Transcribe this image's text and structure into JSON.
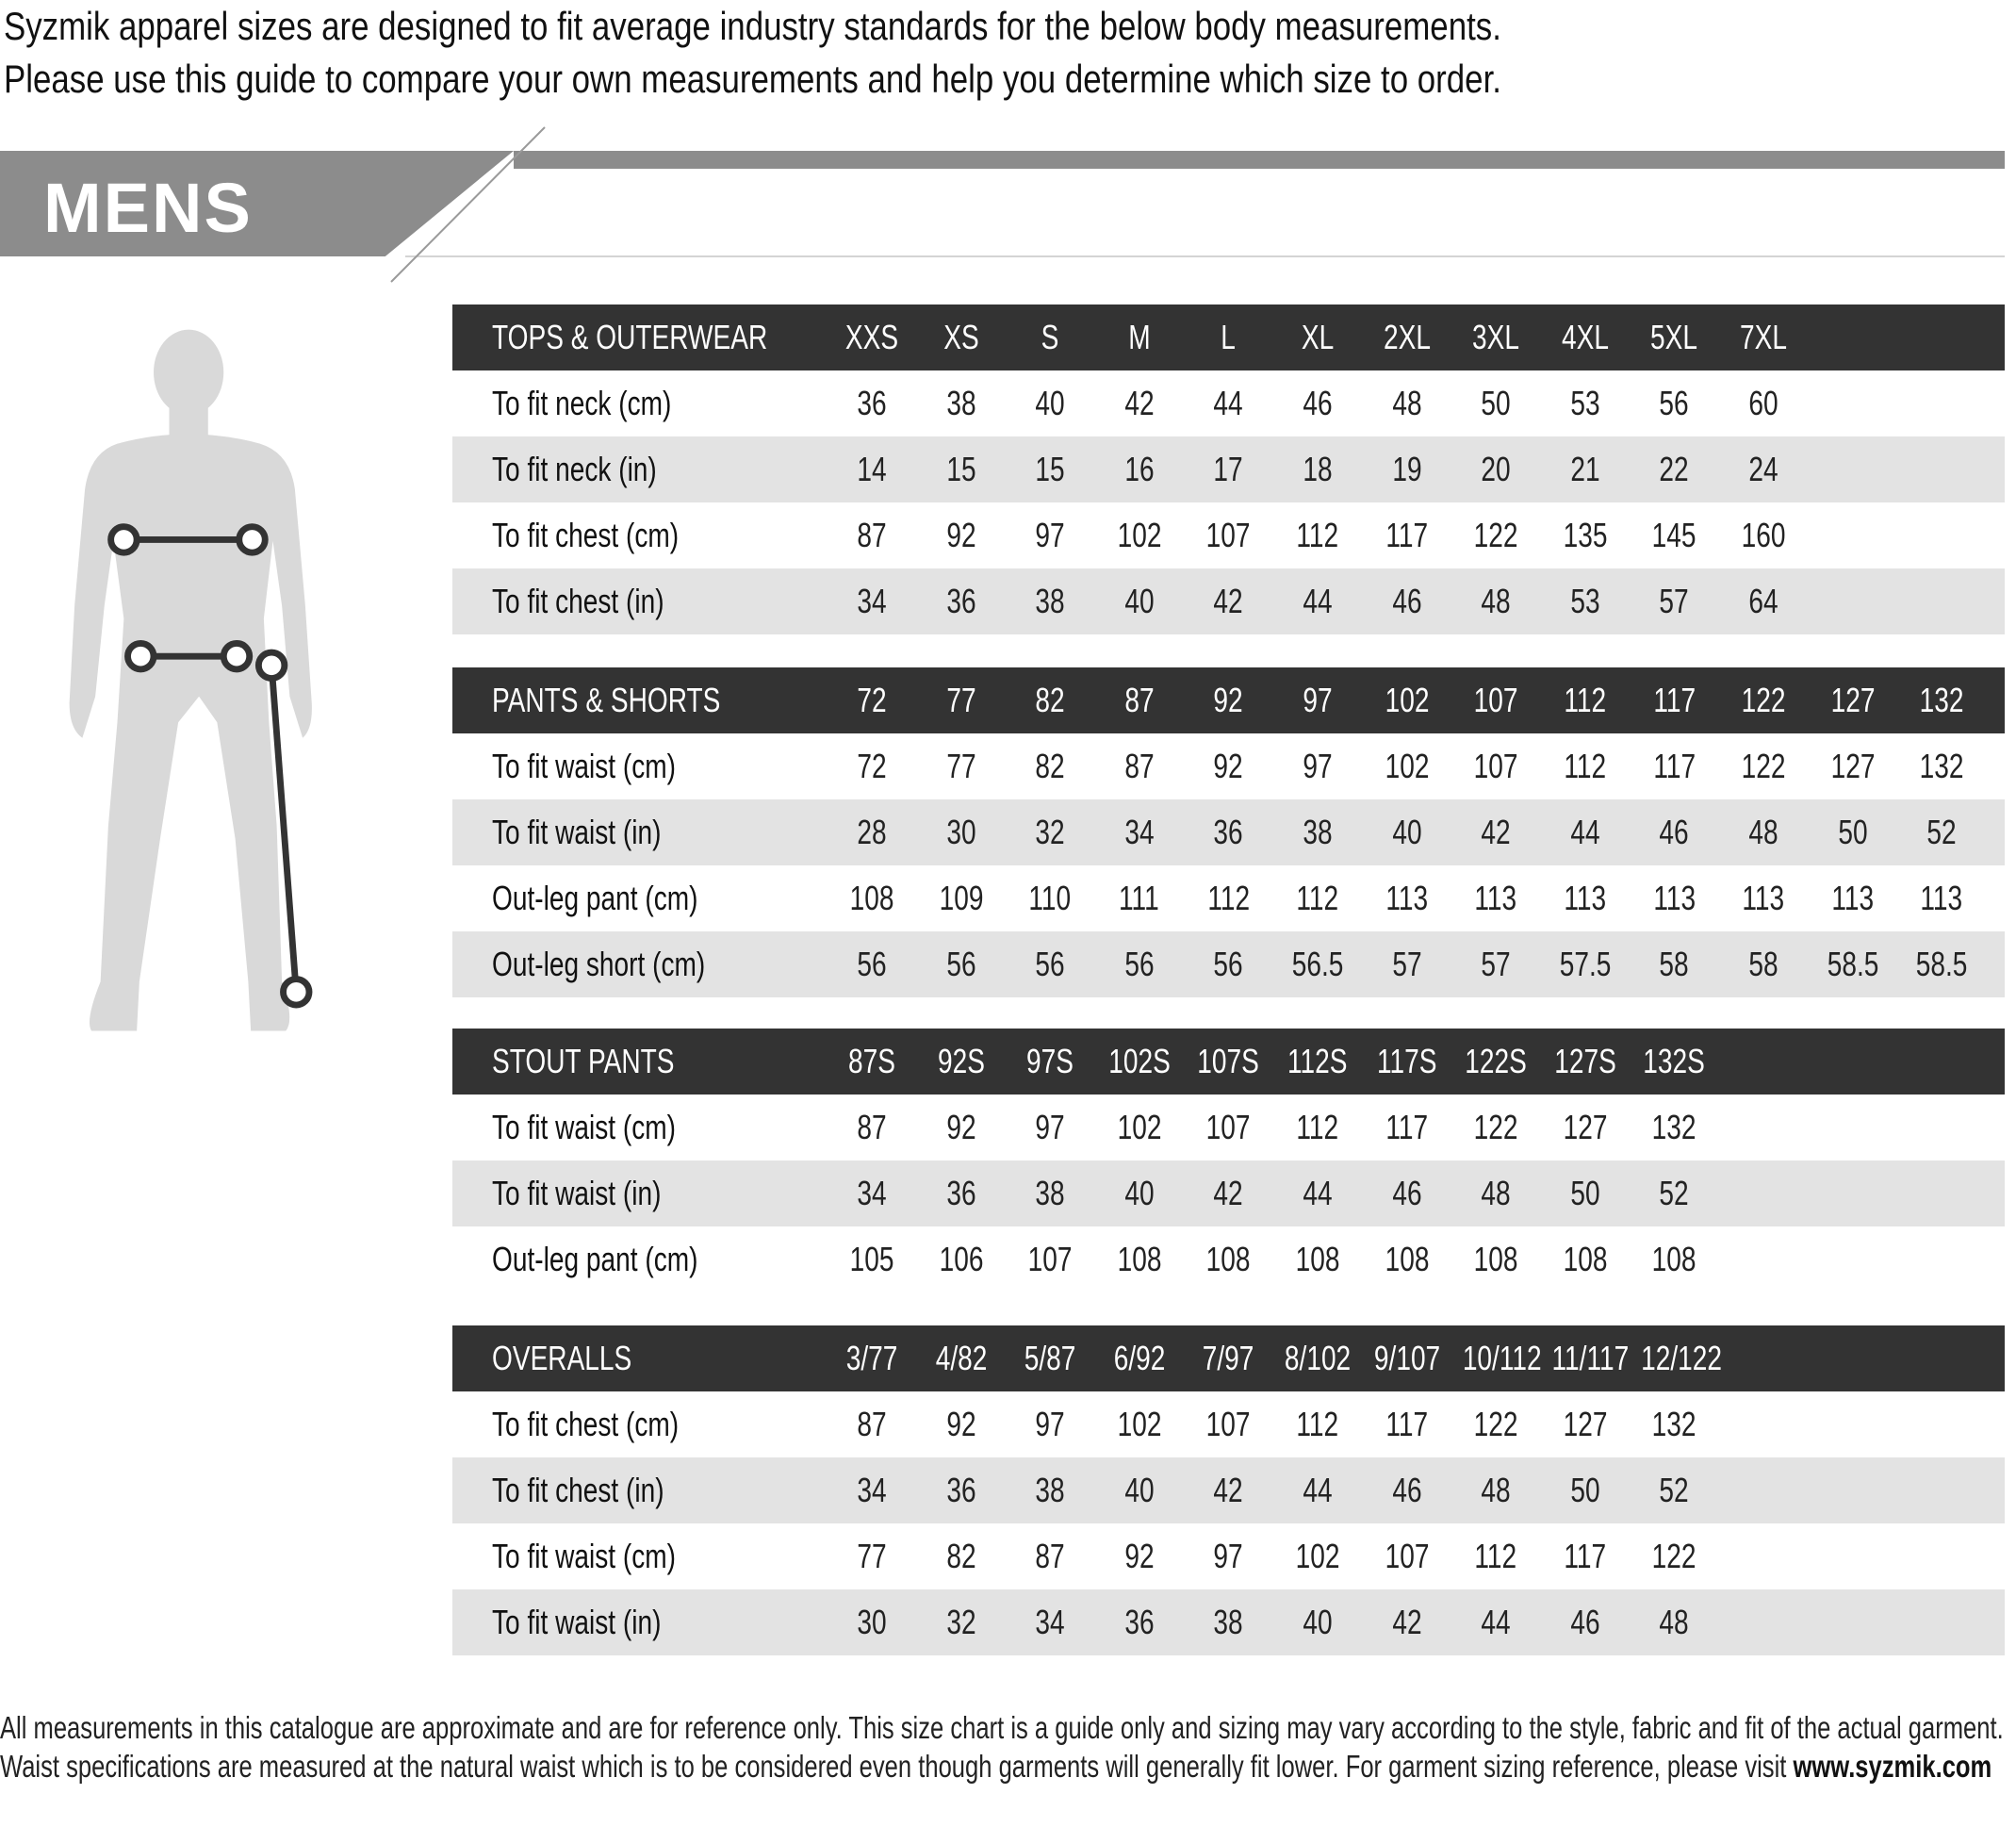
{
  "intro": {
    "line1": "Syzmik apparel sizes are designed to fit average industry standards for the below body measurements.",
    "line2": "Please use this guide to compare your own measurements and help you determine which size to order."
  },
  "banner": {
    "title": "MENS"
  },
  "colors": {
    "header_bg": "#333333",
    "alt_row": "#e3e3e3",
    "banner": "#8c8c8c",
    "figure": "#d9d9d9"
  },
  "tables": [
    {
      "title": "TOPS & OUTERWEAR",
      "sizes": [
        "XXS",
        "XS",
        "S",
        "M",
        "L",
        "XL",
        "2XL",
        "3XL",
        "4XL",
        "5XL",
        "7XL"
      ],
      "rows": [
        {
          "label": "To fit neck (cm)",
          "values": [
            "36",
            "38",
            "40",
            "42",
            "44",
            "46",
            "48",
            "50",
            "53",
            "56",
            "60"
          ]
        },
        {
          "label": "To fit neck (in)",
          "values": [
            "14",
            "15",
            "15",
            "16",
            "17",
            "18",
            "19",
            "20",
            "21",
            "22",
            "24"
          ]
        },
        {
          "label": "To fit chest (cm)",
          "values": [
            "87",
            "92",
            "97",
            "102",
            "107",
            "112",
            "117",
            "122",
            "135",
            "145",
            "160"
          ]
        },
        {
          "label": "To fit chest (in)",
          "values": [
            "34",
            "36",
            "38",
            "40",
            "42",
            "44",
            "46",
            "48",
            "53",
            "57",
            "64"
          ]
        }
      ]
    },
    {
      "title": "PANTS & SHORTS",
      "sizes": [
        "72",
        "77",
        "82",
        "87",
        "92",
        "97",
        "102",
        "107",
        "112",
        "117",
        "122",
        "127",
        "132"
      ],
      "rows": [
        {
          "label": "To fit waist (cm)",
          "values": [
            "72",
            "77",
            "82",
            "87",
            "92",
            "97",
            "102",
            "107",
            "112",
            "117",
            "122",
            "127",
            "132"
          ]
        },
        {
          "label": "To fit waist (in)",
          "values": [
            "28",
            "30",
            "32",
            "34",
            "36",
            "38",
            "40",
            "42",
            "44",
            "46",
            "48",
            "50",
            "52"
          ]
        },
        {
          "label": "Out-leg pant (cm)",
          "values": [
            "108",
            "109",
            "110",
            "111",
            "112",
            "112",
            "113",
            "113",
            "113",
            "113",
            "113",
            "113",
            "113"
          ]
        },
        {
          "label": "Out-leg short (cm)",
          "values": [
            "56",
            "56",
            "56",
            "56",
            "56",
            "56.5",
            "57",
            "57",
            "57.5",
            "58",
            "58",
            "58.5",
            "58.5"
          ]
        }
      ]
    },
    {
      "title": "STOUT PANTS",
      "sizes": [
        "87S",
        "92S",
        "97S",
        "102S",
        "107S",
        "112S",
        "117S",
        "122S",
        "127S",
        "132S"
      ],
      "rows": [
        {
          "label": "To fit waist (cm)",
          "values": [
            "87",
            "92",
            "97",
            "102",
            "107",
            "112",
            "117",
            "122",
            "127",
            "132"
          ]
        },
        {
          "label": "To fit waist (in)",
          "values": [
            "34",
            "36",
            "38",
            "40",
            "42",
            "44",
            "46",
            "48",
            "50",
            "52"
          ]
        },
        {
          "label": "Out-leg pant (cm)",
          "values": [
            "105",
            "106",
            "107",
            "108",
            "108",
            "108",
            "108",
            "108",
            "108",
            "108"
          ]
        }
      ]
    },
    {
      "title": "OVERALLS",
      "sizes": [
        "3/77",
        "4/82",
        "5/87",
        "6/92",
        "7/97",
        "8/102",
        "9/107",
        "10/112",
        "11/117",
        "12/122"
      ],
      "rows": [
        {
          "label": "To fit chest (cm)",
          "values": [
            "87",
            "92",
            "97",
            "102",
            "107",
            "112",
            "117",
            "122",
            "127",
            "132"
          ]
        },
        {
          "label": "To fit chest (in)",
          "values": [
            "34",
            "36",
            "38",
            "40",
            "42",
            "44",
            "46",
            "48",
            "50",
            "52"
          ]
        },
        {
          "label": "To fit waist (cm)",
          "values": [
            "77",
            "82",
            "87",
            "92",
            "97",
            "102",
            "107",
            "112",
            "117",
            "122"
          ]
        },
        {
          "label": "To fit waist (in)",
          "values": [
            "30",
            "32",
            "34",
            "36",
            "38",
            "40",
            "42",
            "44",
            "46",
            "48"
          ]
        }
      ]
    }
  ],
  "footer": {
    "text": "All measurements in this catalogue are approximate and are for reference only. This size chart is a guide only and sizing may vary according to the style, fabric and fit of the actual garment. Waist specifications are measured at the natural waist which is to be considered even though garments will generally fit lower. For garment sizing reference, please visit ",
    "link": "www.syzmik.com"
  }
}
